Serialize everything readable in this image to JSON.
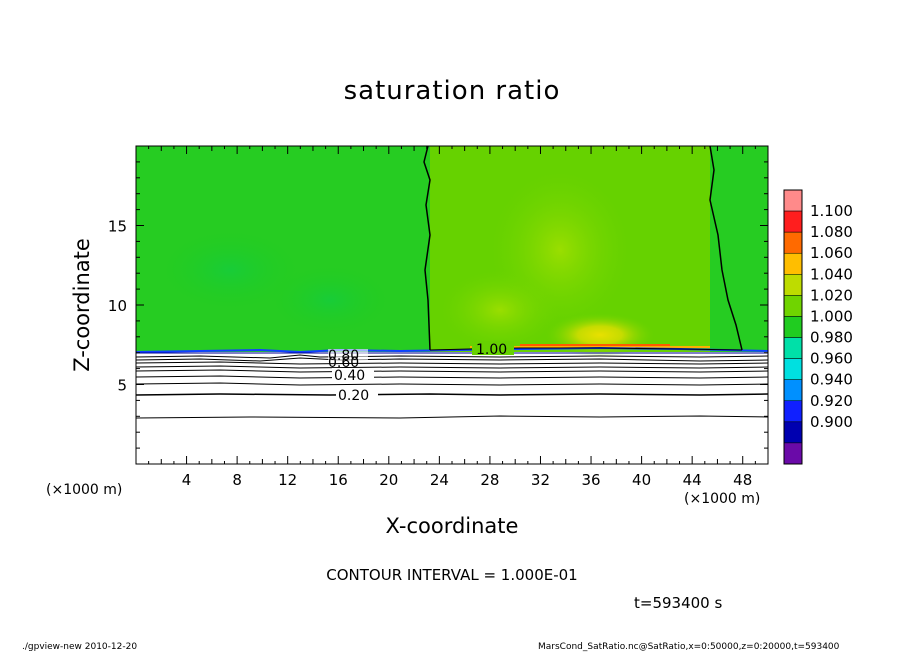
{
  "chart_data": {
    "type": "heatmap",
    "title": "saturation ratio",
    "xlabel": "X-coordinate",
    "ylabel": "Z-coordinate",
    "x_unit": "(×1000 m)",
    "xlim": [
      0,
      50
    ],
    "ylim": [
      0,
      20
    ],
    "x_ticks": [
      4,
      8,
      12,
      16,
      20,
      24,
      28,
      32,
      36,
      40,
      44,
      48
    ],
    "y_ticks": [
      5,
      10,
      15
    ],
    "colorbar": {
      "levels": [
        "1.100",
        "1.080",
        "1.060",
        "1.040",
        "1.020",
        "1.000",
        "0.980",
        "0.960",
        "0.940",
        "0.920",
        "0.900"
      ],
      "colors": [
        "#ff8a8a",
        "#ff1e1e",
        "#ff6a00",
        "#ffbe00",
        "#bedc00",
        "#70d400",
        "#20cc20",
        "#00e0a8",
        "#00e0e0",
        "#0090ff",
        "#1020ff",
        "#0000b0",
        "#6a0aa8"
      ]
    },
    "contours": [
      {
        "level": 1.0,
        "label": "1.00"
      },
      {
        "level": 0.8,
        "label": "0.80"
      },
      {
        "level": 0.6,
        "label": "0.60"
      },
      {
        "level": 0.4,
        "label": "0.40"
      },
      {
        "level": 0.2,
        "label": "0.20"
      }
    ],
    "contour_interval": "CONTOUR INTERVAL = 1.000E-01",
    "time": "t=593400 s"
  },
  "footer": {
    "left": "./gpview-new  2010-12-20",
    "right": "MarsCond_SatRatio.nc@SatRatio,x=0:50000,z=0:20000,t=593400"
  }
}
